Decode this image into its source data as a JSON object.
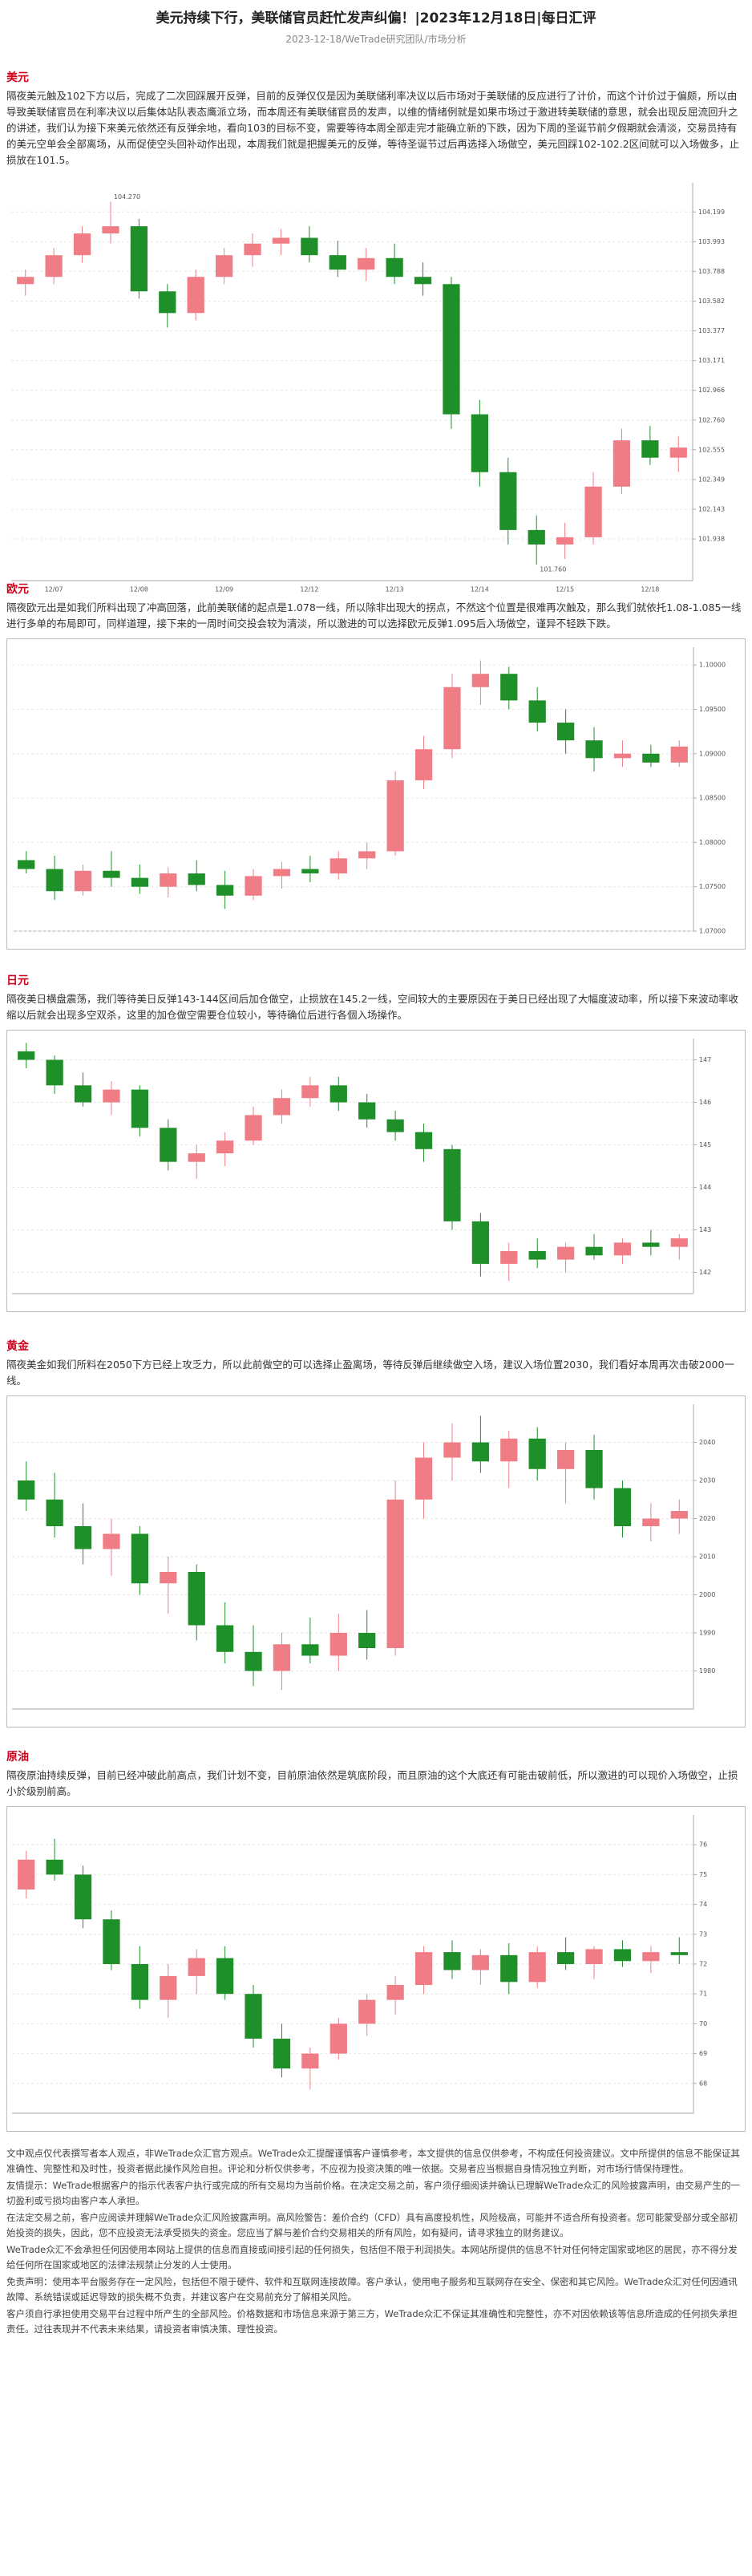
{
  "header": {
    "title": "美元持续下行，美联储官员赶忙发声纠偏！|2023年12月18日|每日汇评",
    "meta": "2023-12-18/WeTrade研究团队/市场分析"
  },
  "sections": [
    {
      "heading": "美元",
      "paragraph": "隔夜美元触及102下方以后，完成了二次回踩展开反弹，目前的反弹仅仅是因为美联储利率决议以后市场对于美联储的反应进行了计价，而这个计价过于偏颇，所以由导致美联储官员在利率决议以后集体站队表态鹰派立场，而本周还有美联储官员的发声，以维的情绪例就是如果市场过于激进转美联储的意思，就会出现反屈流回升之的讲述，我们认为接下来美元依然还有反弹余地，看向103的目标不变，需要等待本周全部走完才能确立新的下跌，因为下周的圣诞节前夕假期就会清淡，交易员持有的美元空单会全部离场，从而促使空头回补动作出现，本周我们就是把握美元的反弹，等待圣诞节过后再选择入场做空，美元回踩102-102.2区间就可以入场做多，止损放在101.5。",
      "chart": {
        "type": "candlestick",
        "up_color": "#f07c86",
        "down_color": "#1f8f2a",
        "grid": true,
        "dates": [
          "12/07",
          "12/08",
          "12/09",
          "12/12",
          "12/13",
          "12/14",
          "12/15",
          "12/18"
        ],
        "high_label": "104.270",
        "low_label": "101.760",
        "ylim": [
          101.65,
          104.4
        ],
        "yticks": [
          104.199,
          103.993,
          103.788,
          103.582,
          103.377,
          103.171,
          102.966,
          {
            "value": 102.76,
            "label": "102.760"
          },
          102.555,
          102.349,
          102.143,
          101.938
        ],
        "candles": [
          [
            103.7,
            103.8,
            103.62,
            103.75
          ],
          [
            103.75,
            103.95,
            103.7,
            103.9
          ],
          [
            103.9,
            104.1,
            103.85,
            104.05
          ],
          [
            104.05,
            104.27,
            103.98,
            104.1
          ],
          [
            104.1,
            104.15,
            103.6,
            103.65
          ],
          [
            103.65,
            103.7,
            103.4,
            103.5
          ],
          [
            103.5,
            103.8,
            103.45,
            103.75
          ],
          [
            103.75,
            103.95,
            103.7,
            103.9
          ],
          [
            103.9,
            104.05,
            103.82,
            103.98
          ],
          [
            103.98,
            104.08,
            103.9,
            104.02
          ],
          [
            104.02,
            104.1,
            103.85,
            103.9
          ],
          [
            103.9,
            104.0,
            103.75,
            103.8
          ],
          [
            103.8,
            103.95,
            103.72,
            103.88
          ],
          [
            103.88,
            103.98,
            103.7,
            103.75
          ],
          [
            103.75,
            103.85,
            103.62,
            103.7
          ],
          [
            103.7,
            103.75,
            102.7,
            102.8
          ],
          [
            102.8,
            102.9,
            102.3,
            102.4
          ],
          [
            102.4,
            102.5,
            101.9,
            102.0
          ],
          [
            102.0,
            102.1,
            101.76,
            101.9
          ],
          [
            101.9,
            102.05,
            101.8,
            101.95
          ],
          [
            101.95,
            102.4,
            101.9,
            102.3
          ],
          [
            102.3,
            102.7,
            102.25,
            102.62
          ],
          [
            102.62,
            102.72,
            102.45,
            102.5
          ],
          [
            102.5,
            102.65,
            102.4,
            102.57
          ]
        ]
      }
    },
    {
      "heading": "欧元",
      "paragraph": "隔夜欧元出是如我们所料出现了冲高回落，此前美联储的起点是1.078一线，所以除非出现大的拐点，不然这个位置是很难再次触及，那么我们就依托1.08-1.085一线进行多单的布局即可，同样道理，接下来的一周时间交投会较为清淡，所以激进的可以选择欧元反弹1.095后入场做空，谨异不轻跌下跌。",
      "chart": {
        "type": "candlestick",
        "up_color": "#f07c86",
        "down_color": "#1f8f2a",
        "grid": true,
        "ylim": [
          1.07,
          1.102
        ],
        "yticks": [
          {
            "value": 1.07,
            "label": "1.07000"
          },
          {
            "value": 1.075,
            "label": "1.07500"
          },
          {
            "value": 1.08,
            "label": "1.08000"
          },
          {
            "value": 1.085,
            "label": "1.08500"
          },
          {
            "value": 1.09,
            "label": "1.09000"
          },
          {
            "value": 1.095,
            "label": "1.09500"
          },
          {
            "value": 1.1,
            "label": "1.10000"
          }
        ],
        "candles": [
          [
            1.078,
            1.079,
            1.0765,
            1.077
          ],
          [
            1.077,
            1.0785,
            1.0735,
            1.0745
          ],
          [
            1.0745,
            1.0775,
            1.074,
            1.0768
          ],
          [
            1.0768,
            1.079,
            1.075,
            1.076
          ],
          [
            1.076,
            1.0775,
            1.0742,
            1.075
          ],
          [
            1.075,
            1.0772,
            1.0738,
            1.0765
          ],
          [
            1.0765,
            1.078,
            1.0745,
            1.0752
          ],
          [
            1.0752,
            1.0768,
            1.0725,
            1.074
          ],
          [
            1.074,
            1.077,
            1.0735,
            1.0762
          ],
          [
            1.0762,
            1.0778,
            1.0748,
            1.077
          ],
          [
            1.077,
            1.0785,
            1.0755,
            1.0765
          ],
          [
            1.0765,
            1.079,
            1.0758,
            1.0782
          ],
          [
            1.0782,
            1.08,
            1.077,
            1.079
          ],
          [
            1.079,
            1.088,
            1.0785,
            1.087
          ],
          [
            1.087,
            1.092,
            1.086,
            1.0905
          ],
          [
            1.0905,
            1.099,
            1.0895,
            1.0975
          ],
          [
            1.0975,
            1.1005,
            1.0955,
            1.099
          ],
          [
            1.099,
            1.0998,
            1.095,
            1.096
          ],
          [
            1.096,
            1.0975,
            1.0925,
            1.0935
          ],
          [
            1.0935,
            1.095,
            1.09,
            1.0915
          ],
          [
            1.0915,
            1.093,
            1.088,
            1.0895
          ],
          [
            1.0895,
            1.0915,
            1.0885,
            1.09
          ],
          [
            1.09,
            1.091,
            1.0885,
            1.089
          ],
          [
            1.089,
            1.0915,
            1.0885,
            1.0908
          ]
        ]
      }
    },
    {
      "heading": "日元",
      "paragraph": "隔夜美日横盘震荡，我们等待美日反弹143-144区间后加仓做空，止损放在145.2一线，空间较大的主要原因在于美日已经出现了大幅度波动率，所以接下来波动率收缩以后就会出现多空双杀，这里的加仓做空需要仓位较小，等待确位后进行各個入场操作。",
      "chart": {
        "type": "candlestick",
        "up_color": "#f07c86",
        "down_color": "#1f8f2a",
        "grid": true,
        "ylim": [
          141.5,
          147.5
        ],
        "yticks": [
          142,
          143,
          144,
          145,
          146,
          147
        ],
        "candles": [
          [
            147.2,
            147.4,
            146.8,
            147.0
          ],
          [
            147.0,
            147.1,
            146.2,
            146.4
          ],
          [
            146.4,
            146.7,
            145.9,
            146.0
          ],
          [
            146.0,
            146.5,
            145.7,
            146.3
          ],
          [
            146.3,
            146.4,
            145.2,
            145.4
          ],
          [
            145.4,
            145.6,
            144.4,
            144.6
          ],
          [
            144.6,
            145.0,
            144.2,
            144.8
          ],
          [
            144.8,
            145.3,
            144.5,
            145.1
          ],
          [
            145.1,
            145.9,
            145.0,
            145.7
          ],
          [
            145.7,
            146.3,
            145.5,
            146.1
          ],
          [
            146.1,
            146.6,
            145.9,
            146.4
          ],
          [
            146.4,
            146.6,
            145.8,
            146.0
          ],
          [
            146.0,
            146.2,
            145.4,
            145.6
          ],
          [
            145.6,
            145.8,
            145.1,
            145.3
          ],
          [
            145.3,
            145.5,
            144.6,
            144.9
          ],
          [
            144.9,
            145.0,
            143.0,
            143.2
          ],
          [
            143.2,
            143.4,
            141.9,
            142.2
          ],
          [
            142.2,
            142.7,
            141.8,
            142.5
          ],
          [
            142.5,
            142.8,
            142.1,
            142.3
          ],
          [
            142.3,
            142.7,
            142.0,
            142.6
          ],
          [
            142.6,
            142.9,
            142.3,
            142.4
          ],
          [
            142.4,
            142.8,
            142.2,
            142.7
          ],
          [
            142.7,
            143.0,
            142.4,
            142.6
          ],
          [
            142.6,
            142.9,
            142.3,
            142.8
          ]
        ]
      }
    },
    {
      "heading": "黄金",
      "paragraph": "隔夜美金如我们所料在2050下方已经上攻乏力，所以此前做空的可以选择止盈离场，等待反弹后继续做空入场，建议入场位置2030，我们看好本周再次击破2000一线。",
      "chart": {
        "type": "candlestick",
        "up_color": "#f07c86",
        "down_color": "#1f8f2a",
        "grid": true,
        "ylim": [
          1970,
          2050
        ],
        "yticks": [
          1980,
          1990,
          2000,
          2010,
          2020,
          2030,
          2040
        ],
        "candles": [
          [
            2030,
            2035,
            2022,
            2025
          ],
          [
            2025,
            2032,
            2015,
            2018
          ],
          [
            2018,
            2024,
            2008,
            2012
          ],
          [
            2012,
            2020,
            2005,
            2016
          ],
          [
            2016,
            2018,
            2000,
            2003
          ],
          [
            2003,
            2010,
            1995,
            2006
          ],
          [
            2006,
            2008,
            1988,
            1992
          ],
          [
            1992,
            1998,
            1982,
            1985
          ],
          [
            1985,
            1992,
            1976,
            1980
          ],
          [
            1980,
            1990,
            1975,
            1987
          ],
          [
            1987,
            1994,
            1982,
            1984
          ],
          [
            1984,
            1995,
            1980,
            1990
          ],
          [
            1990,
            1996,
            1983,
            1986
          ],
          [
            1986,
            2030,
            1984,
            2025
          ],
          [
            2025,
            2040,
            2020,
            2036
          ],
          [
            2036,
            2045,
            2030,
            2040
          ],
          [
            2040,
            2047,
            2032,
            2035
          ],
          [
            2035,
            2043,
            2028,
            2041
          ],
          [
            2041,
            2044,
            2030,
            2033
          ],
          [
            2033,
            2040,
            2024,
            2038
          ],
          [
            2038,
            2042,
            2025,
            2028
          ],
          [
            2028,
            2030,
            2015,
            2018
          ],
          [
            2018,
            2024,
            2014,
            2020
          ],
          [
            2020,
            2025,
            2016,
            2022
          ]
        ]
      }
    },
    {
      "heading": "原油",
      "paragraph": "隔夜原油持续反弹，目前已经冲破此前高点，我们计划不变，目前原油依然是筑底阶段，而且原油的这个大底还有可能击破前低，所以激进的可以现价入场做空，止损小於级别前高。",
      "chart": {
        "type": "candlestick",
        "up_color": "#f07c86",
        "down_color": "#1f8f2a",
        "grid": true,
        "ylim": [
          67,
          77
        ],
        "yticks": [
          68,
          69,
          70,
          71,
          72,
          73,
          74,
          75,
          76
        ],
        "candles": [
          [
            74.5,
            75.8,
            74.2,
            75.5
          ],
          [
            75.5,
            76.2,
            74.8,
            75.0
          ],
          [
            75.0,
            75.3,
            73.2,
            73.5
          ],
          [
            73.5,
            73.8,
            71.8,
            72.0
          ],
          [
            72.0,
            72.6,
            70.5,
            70.8
          ],
          [
            70.8,
            72.0,
            70.2,
            71.6
          ],
          [
            71.6,
            72.5,
            71.0,
            72.2
          ],
          [
            72.2,
            72.6,
            70.8,
            71.0
          ],
          [
            71.0,
            71.3,
            69.2,
            69.5
          ],
          [
            69.5,
            70.0,
            68.2,
            68.5
          ],
          [
            68.5,
            69.2,
            67.8,
            69.0
          ],
          [
            69.0,
            70.2,
            68.8,
            70.0
          ],
          [
            70.0,
            71.0,
            69.6,
            70.8
          ],
          [
            70.8,
            71.6,
            70.3,
            71.3
          ],
          [
            71.3,
            72.6,
            71.0,
            72.4
          ],
          [
            72.4,
            72.8,
            71.5,
            71.8
          ],
          [
            71.8,
            72.5,
            71.3,
            72.3
          ],
          [
            72.3,
            72.7,
            71.0,
            71.4
          ],
          [
            71.4,
            72.6,
            71.2,
            72.4
          ],
          [
            72.4,
            72.9,
            71.8,
            72.0
          ],
          [
            72.0,
            72.6,
            71.5,
            72.5
          ],
          [
            72.5,
            72.8,
            71.9,
            72.1
          ],
          [
            72.1,
            72.6,
            71.7,
            72.4
          ],
          [
            72.4,
            72.9,
            72.0,
            72.3
          ]
        ]
      }
    }
  ],
  "disclaimer": [
    "文中观点仅代表撰写者本人观点，非WeTrade众汇官方观点。WeTrade众汇提醒谨慎客户谨慎参考，本文提供的信息仅供参考，不构成任何投资建议。文中所提供的信息不能保证其准确性、完整性和及时性，投资者据此操作风险自担。评论和分析仅供参考，不应视为投资决策的唯一依据。交易者应当根据自身情况独立判断，对市场行情保持理性。",
    "友情提示：WeTrade根据客户的指示代表客户执行或完成的所有交易均为当前价格。在决定交易之前，客户须仔细阅读并确认已理解WeTrade众汇的风险披露声明，由交易产生的一切盈利或亏损均由客户本人承担。",
    "在法定交易之前，客户应阅读并理解WeTrade众汇风险披露声明。高风险警告：差价合约（CFD）具有高度投机性，风险极高，可能并不适合所有投资者。您可能蒙受部分或全部初始投资的损失，因此，您不应投资无法承受损失的资金。您应当了解与差价合约交易相关的所有风险，如有疑问，请寻求独立的财务建议。",
    "WeTrade众汇不会承担任何因使用本网站上提供的信息而直接或间接引起的任何损失，包括但不限于利润损失。本网站所提供的信息不针对任何特定国家或地区的居民，亦不得分发给任何所在国家或地区的法律法规禁止分发的人士使用。",
    "免责声明：使用本平台服务存在一定风险，包括但不限于硬件、软件和互联网连接故障。客户承认，使用电子服务和互联网存在安全、保密和其它风险。WeTrade众汇对任何因通讯故障、系统错误或延迟导致的损失概不负责，并建议客户在交易前充分了解相关风险。",
    "客户须自行承担使用交易平台过程中所产生的全部风险。价格数据和市场信息来源于第三方，WeTrade众汇不保证其准确性和完整性，亦不对因依赖该等信息所造成的任何损失承担责任。过往表现并不代表未来结果，请投资者审慎决策、理性投资。"
  ]
}
